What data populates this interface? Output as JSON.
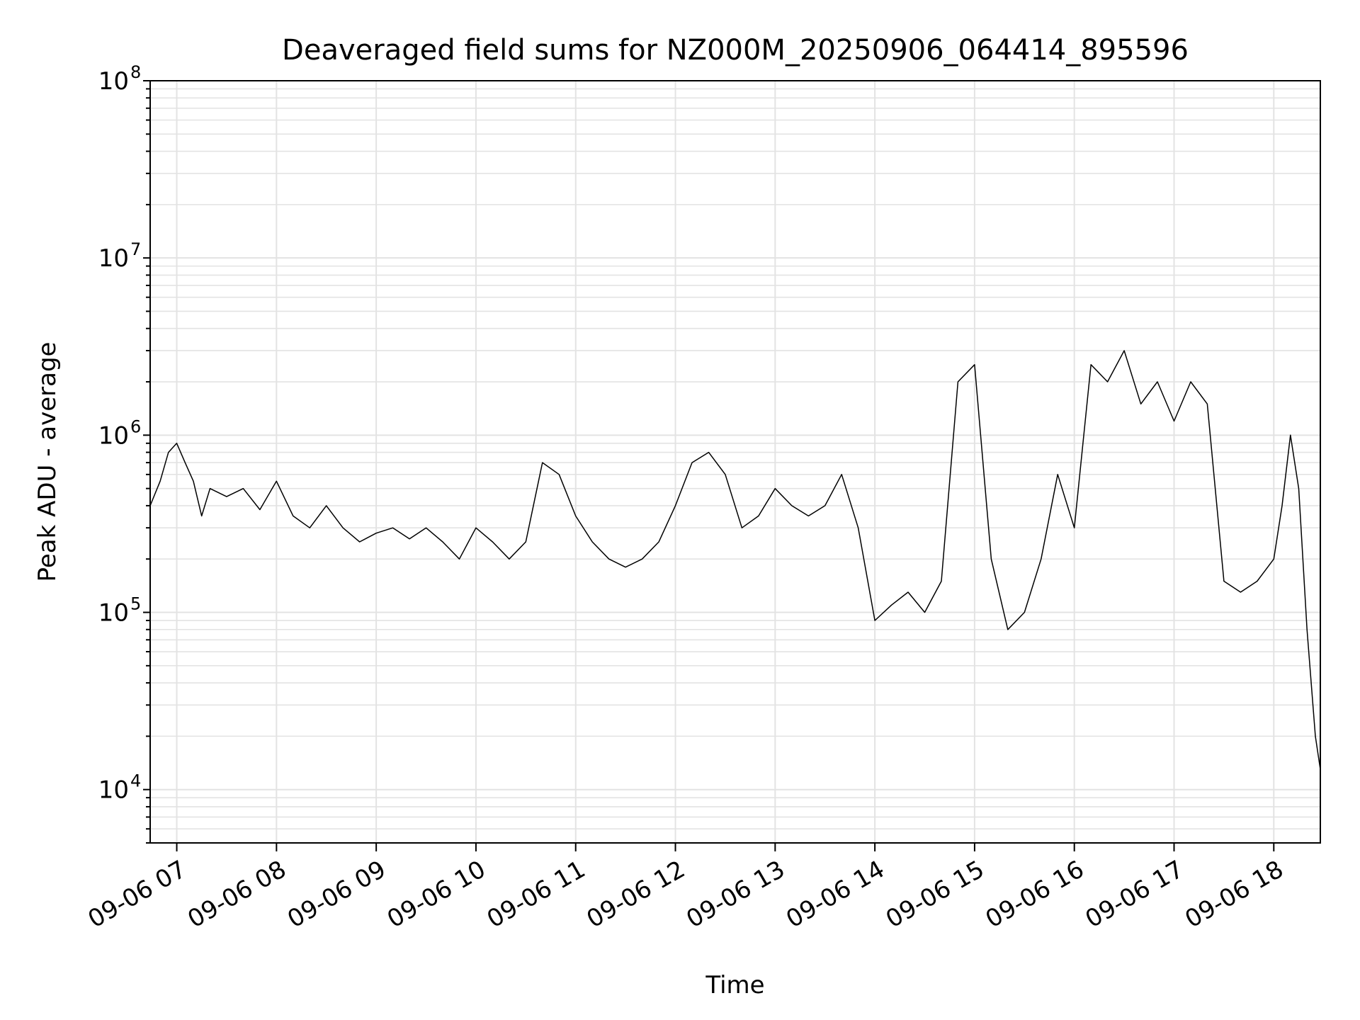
{
  "chart_data": {
    "type": "line",
    "title": "Deaveraged field sums for NZ000M_20250906_064414_895596",
    "xlabel": "Time",
    "ylabel": "Peak ADU - average",
    "yscale": "log",
    "ylim": [
      5000,
      100000000
    ],
    "xlim": [
      "09-06 06:44",
      "09-06 18:28"
    ],
    "grid": true,
    "x_tick_labels": [
      "09-06 07",
      "09-06 08",
      "09-06 09",
      "09-06 10",
      "09-06 11",
      "09-06 12",
      "09-06 13",
      "09-06 14",
      "09-06 15",
      "09-06 16",
      "09-06 17",
      "09-06 18"
    ],
    "y_ticks": [
      {
        "base": "10",
        "exp": "4",
        "value": 10000
      },
      {
        "base": "10",
        "exp": "5",
        "value": 100000
      },
      {
        "base": "10",
        "exp": "6",
        "value": 1000000
      },
      {
        "base": "10",
        "exp": "7",
        "value": 10000000
      },
      {
        "base": "10",
        "exp": "8",
        "value": 100000000
      }
    ],
    "series": [
      {
        "color": "#000000",
        "points": [
          [
            "09-06 06:44",
            400000
          ],
          [
            "09-06 06:50",
            550000
          ],
          [
            "09-06 06:55",
            800000
          ],
          [
            "09-06 07:00",
            900000
          ],
          [
            "09-06 07:05",
            700000
          ],
          [
            "09-06 07:10",
            550000
          ],
          [
            "09-06 07:15",
            350000
          ],
          [
            "09-06 07:20",
            500000
          ],
          [
            "09-06 07:30",
            450000
          ],
          [
            "09-06 07:40",
            500000
          ],
          [
            "09-06 07:50",
            380000
          ],
          [
            "09-06 08:00",
            550000
          ],
          [
            "09-06 08:10",
            350000
          ],
          [
            "09-06 08:20",
            300000
          ],
          [
            "09-06 08:30",
            400000
          ],
          [
            "09-06 08:40",
            300000
          ],
          [
            "09-06 08:50",
            250000
          ],
          [
            "09-06 09:00",
            280000
          ],
          [
            "09-06 09:10",
            300000
          ],
          [
            "09-06 09:20",
            260000
          ],
          [
            "09-06 09:30",
            300000
          ],
          [
            "09-06 09:40",
            250000
          ],
          [
            "09-06 09:50",
            200000
          ],
          [
            "09-06 10:00",
            300000
          ],
          [
            "09-06 10:10",
            250000
          ],
          [
            "09-06 10:20",
            200000
          ],
          [
            "09-06 10:30",
            250000
          ],
          [
            "09-06 10:40",
            700000
          ],
          [
            "09-06 10:50",
            600000
          ],
          [
            "09-06 11:00",
            350000
          ],
          [
            "09-06 11:10",
            250000
          ],
          [
            "09-06 11:20",
            200000
          ],
          [
            "09-06 11:30",
            180000
          ],
          [
            "09-06 11:40",
            200000
          ],
          [
            "09-06 11:50",
            250000
          ],
          [
            "09-06 12:00",
            400000
          ],
          [
            "09-06 12:10",
            700000
          ],
          [
            "09-06 12:20",
            800000
          ],
          [
            "09-06 12:30",
            600000
          ],
          [
            "09-06 12:40",
            300000
          ],
          [
            "09-06 12:50",
            350000
          ],
          [
            "09-06 13:00",
            500000
          ],
          [
            "09-06 13:10",
            400000
          ],
          [
            "09-06 13:20",
            350000
          ],
          [
            "09-06 13:30",
            400000
          ],
          [
            "09-06 13:40",
            600000
          ],
          [
            "09-06 13:50",
            300000
          ],
          [
            "09-06 14:00",
            90000
          ],
          [
            "09-06 14:10",
            110000
          ],
          [
            "09-06 14:20",
            130000
          ],
          [
            "09-06 14:30",
            100000
          ],
          [
            "09-06 14:40",
            150000
          ],
          [
            "09-06 14:50",
            2000000
          ],
          [
            "09-06 15:00",
            2500000
          ],
          [
            "09-06 15:10",
            200000
          ],
          [
            "09-06 15:20",
            80000
          ],
          [
            "09-06 15:30",
            100000
          ],
          [
            "09-06 15:40",
            200000
          ],
          [
            "09-06 15:50",
            600000
          ],
          [
            "09-06 16:00",
            300000
          ],
          [
            "09-06 16:10",
            2500000
          ],
          [
            "09-06 16:20",
            2000000
          ],
          [
            "09-06 16:30",
            3000000
          ],
          [
            "09-06 16:40",
            1500000
          ],
          [
            "09-06 16:50",
            2000000
          ],
          [
            "09-06 17:00",
            1200000
          ],
          [
            "09-06 17:10",
            2000000
          ],
          [
            "09-06 17:20",
            1500000
          ],
          [
            "09-06 17:30",
            150000
          ],
          [
            "09-06 17:40",
            130000
          ],
          [
            "09-06 17:50",
            150000
          ],
          [
            "09-06 18:00",
            200000
          ],
          [
            "09-06 18:05",
            400000
          ],
          [
            "09-06 18:10",
            1000000
          ],
          [
            "09-06 18:15",
            500000
          ],
          [
            "09-06 18:20",
            80000
          ],
          [
            "09-06 18:25",
            20000
          ],
          [
            "09-06 18:28",
            13000
          ]
        ]
      }
    ]
  }
}
